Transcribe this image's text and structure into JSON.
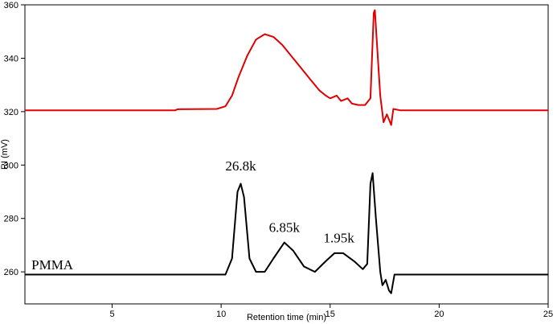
{
  "chart_data": {
    "type": "line",
    "title": "",
    "xlabel": "Retention time (min)",
    "ylabel": "RI (mV)",
    "xlim": [
      1,
      25
    ],
    "ylim": [
      248,
      360
    ],
    "xticks": [
      5,
      10,
      15,
      20,
      25
    ],
    "yticks": [
      260,
      280,
      300,
      320,
      340,
      360
    ],
    "grid": false,
    "legend": "none",
    "series": [
      {
        "color": "#e00000",
        "points": [
          [
            1,
            320.5
          ],
          [
            7.9,
            320.5
          ],
          [
            8,
            320.9
          ],
          [
            9.8,
            321
          ],
          [
            10.2,
            322
          ],
          [
            10.5,
            326
          ],
          [
            10.8,
            333
          ],
          [
            11.2,
            341
          ],
          [
            11.6,
            347
          ],
          [
            12,
            349
          ],
          [
            12.4,
            348
          ],
          [
            12.8,
            345
          ],
          [
            13.4,
            339
          ],
          [
            14,
            333
          ],
          [
            14.5,
            328
          ],
          [
            14.8,
            326
          ],
          [
            15,
            325
          ],
          [
            15.3,
            326
          ],
          [
            15.5,
            324
          ],
          [
            15.8,
            325
          ],
          [
            16,
            323
          ],
          [
            16.3,
            322.5
          ],
          [
            16.6,
            322.5
          ],
          [
            16.85,
            325
          ],
          [
            17,
            357
          ],
          [
            17.05,
            358
          ],
          [
            17.15,
            345
          ],
          [
            17.3,
            326
          ],
          [
            17.45,
            316
          ],
          [
            17.6,
            319
          ],
          [
            17.7,
            317
          ],
          [
            17.8,
            315
          ],
          [
            17.9,
            321
          ],
          [
            18.2,
            320.5
          ],
          [
            25,
            320.5
          ]
        ]
      },
      {
        "color": "#000000",
        "points": [
          [
            1,
            259
          ],
          [
            10.2,
            259
          ],
          [
            10.5,
            265
          ],
          [
            10.75,
            290
          ],
          [
            10.9,
            293
          ],
          [
            11.05,
            288
          ],
          [
            11.3,
            265
          ],
          [
            11.6,
            260
          ],
          [
            12,
            260
          ],
          [
            12.4,
            265
          ],
          [
            12.9,
            271
          ],
          [
            13.3,
            268
          ],
          [
            13.8,
            262
          ],
          [
            14.3,
            260
          ],
          [
            14.8,
            264
          ],
          [
            15.2,
            267
          ],
          [
            15.6,
            267
          ],
          [
            16.1,
            264
          ],
          [
            16.5,
            261
          ],
          [
            16.7,
            263
          ],
          [
            16.85,
            293
          ],
          [
            16.95,
            297
          ],
          [
            17.1,
            280
          ],
          [
            17.3,
            260
          ],
          [
            17.4,
            255
          ],
          [
            17.55,
            257
          ],
          [
            17.7,
            253
          ],
          [
            17.8,
            252
          ],
          [
            17.95,
            259
          ],
          [
            18.2,
            259
          ],
          [
            25,
            259
          ]
        ]
      }
    ],
    "annotations": [
      {
        "text": "26.8k",
        "x": 10.9,
        "y": 298
      },
      {
        "text": "6.85k",
        "x": 12.9,
        "y": 275
      },
      {
        "text": "1.95k",
        "x": 15.4,
        "y": 271
      },
      {
        "text": "PMMA",
        "x": 1.3,
        "y": 261
      }
    ]
  }
}
